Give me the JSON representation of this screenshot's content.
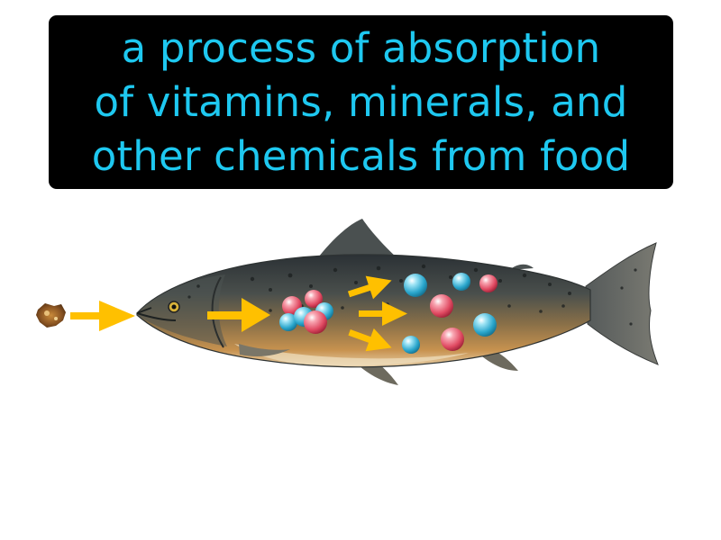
{
  "caption": {
    "lines": [
      "a process of absorption",
      "of vitamins, minerals, and",
      "other chemicals from food"
    ]
  },
  "colors": {
    "caption_bg": "#000000",
    "caption_text": "#1ec8f0",
    "arrow": "#ffc000",
    "nutrient_blue": "#3cb8d8",
    "nutrient_red": "#e8506a",
    "fish_back": "#3a3f42",
    "fish_belly": "#c7924f"
  },
  "icons": [
    "food-particle-icon",
    "arrow-icon",
    "fish-illustration",
    "nutrient-molecule-icon"
  ]
}
